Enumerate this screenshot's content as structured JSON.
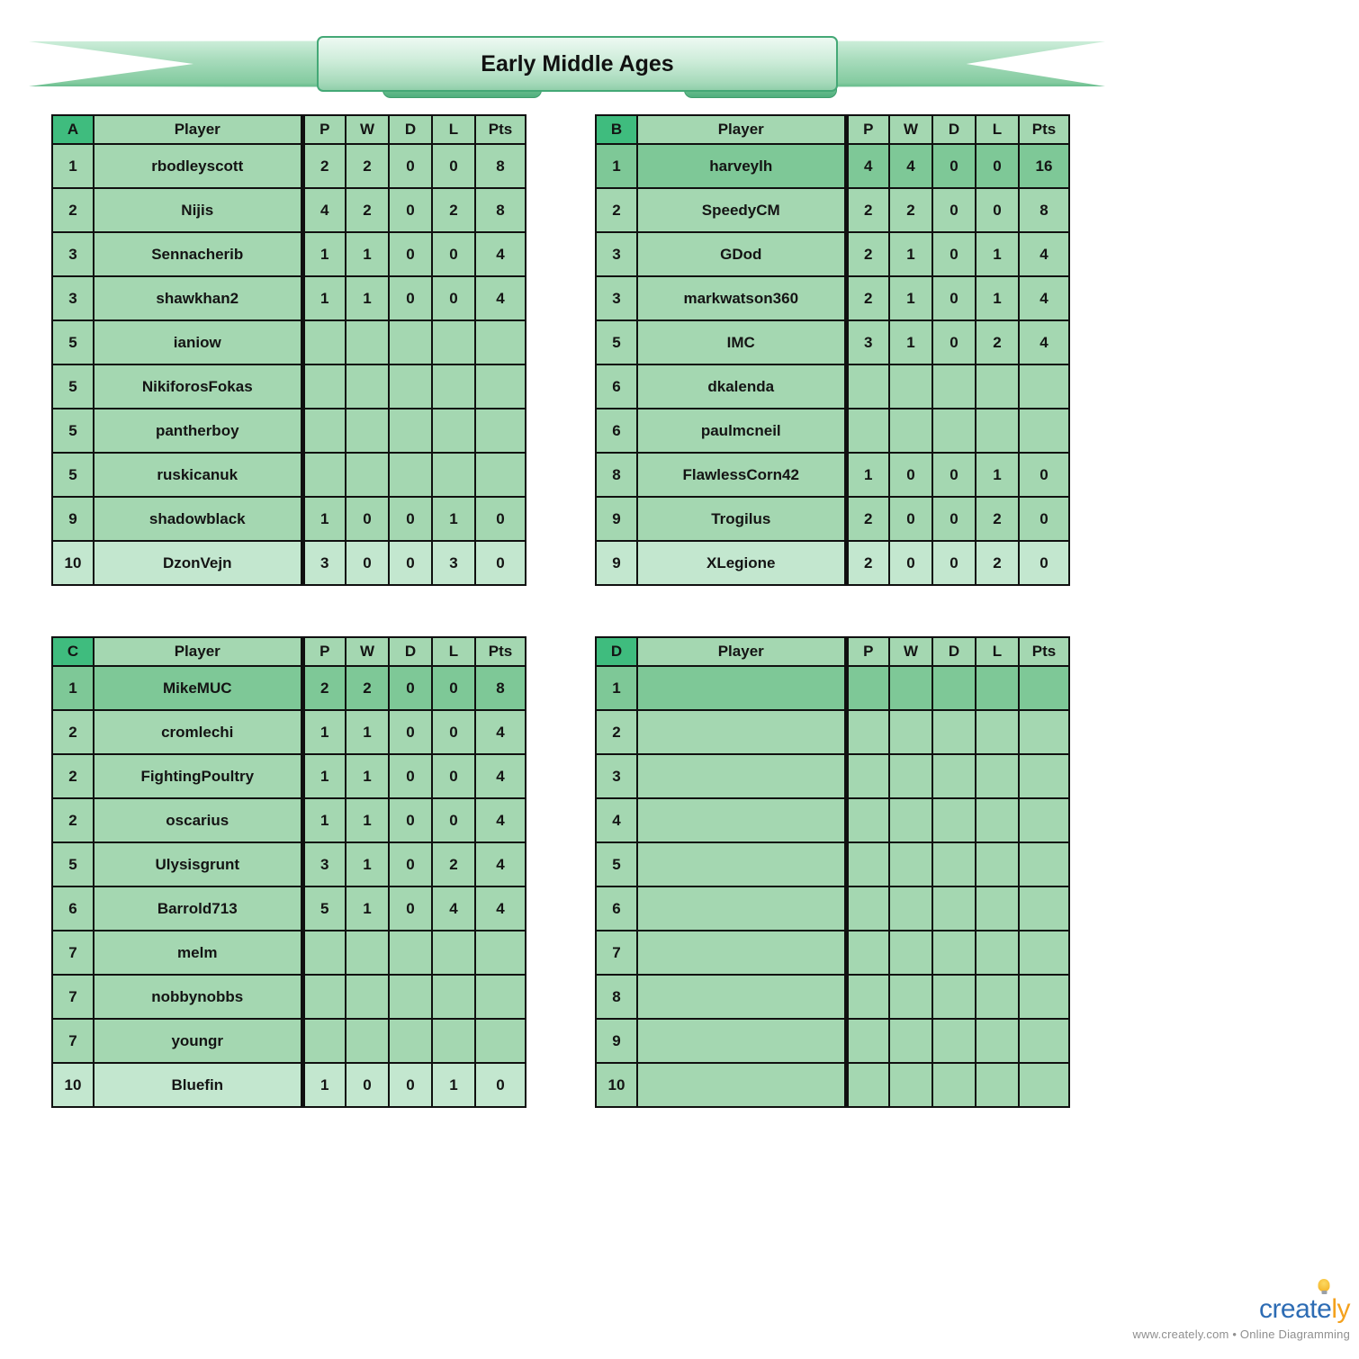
{
  "banner": {
    "title": "Early Middle Ages"
  },
  "columns": {
    "player": "Player",
    "p": "P",
    "w": "W",
    "d": "D",
    "l": "L",
    "pts": "Pts"
  },
  "groups": [
    {
      "letter": "A",
      "rows": [
        {
          "rank": "1",
          "player": "rbodleyscott",
          "p": "2",
          "w": "2",
          "d": "0",
          "l": "0",
          "pts": "8",
          "highlight": "normal"
        },
        {
          "rank": "2",
          "player": "Nijis",
          "p": "4",
          "w": "2",
          "d": "0",
          "l": "2",
          "pts": "8",
          "highlight": "normal"
        },
        {
          "rank": "3",
          "player": "Sennacherib",
          "p": "1",
          "w": "1",
          "d": "0",
          "l": "0",
          "pts": "4",
          "highlight": "normal"
        },
        {
          "rank": "3",
          "player": "shawkhan2",
          "p": "1",
          "w": "1",
          "d": "0",
          "l": "0",
          "pts": "4",
          "highlight": "normal"
        },
        {
          "rank": "5",
          "player": "ianiow",
          "p": "",
          "w": "",
          "d": "",
          "l": "",
          "pts": "",
          "highlight": "normal"
        },
        {
          "rank": "5",
          "player": "NikiforosFokas",
          "p": "",
          "w": "",
          "d": "",
          "l": "",
          "pts": "",
          "highlight": "normal"
        },
        {
          "rank": "5",
          "player": "pantherboy",
          "p": "",
          "w": "",
          "d": "",
          "l": "",
          "pts": "",
          "highlight": "normal"
        },
        {
          "rank": "5",
          "player": "ruskicanuk",
          "p": "",
          "w": "",
          "d": "",
          "l": "",
          "pts": "",
          "highlight": "normal"
        },
        {
          "rank": "9",
          "player": "shadowblack",
          "p": "1",
          "w": "0",
          "d": "0",
          "l": "1",
          "pts": "0",
          "highlight": "normal"
        },
        {
          "rank": "10",
          "player": "DzonVejn",
          "p": "3",
          "w": "0",
          "d": "0",
          "l": "3",
          "pts": "0",
          "highlight": "bottom"
        }
      ]
    },
    {
      "letter": "B",
      "rows": [
        {
          "rank": "1",
          "player": "harveylh",
          "p": "4",
          "w": "4",
          "d": "0",
          "l": "0",
          "pts": "16",
          "highlight": "top"
        },
        {
          "rank": "2",
          "player": "SpeedyCM",
          "p": "2",
          "w": "2",
          "d": "0",
          "l": "0",
          "pts": "8",
          "highlight": "normal"
        },
        {
          "rank": "3",
          "player": "GDod",
          "p": "2",
          "w": "1",
          "d": "0",
          "l": "1",
          "pts": "4",
          "highlight": "normal"
        },
        {
          "rank": "3",
          "player": "markwatson360",
          "p": "2",
          "w": "1",
          "d": "0",
          "l": "1",
          "pts": "4",
          "highlight": "normal"
        },
        {
          "rank": "5",
          "player": "IMC",
          "p": "3",
          "w": "1",
          "d": "0",
          "l": "2",
          "pts": "4",
          "highlight": "normal"
        },
        {
          "rank": "6",
          "player": "dkalenda",
          "p": "",
          "w": "",
          "d": "",
          "l": "",
          "pts": "",
          "highlight": "normal"
        },
        {
          "rank": "6",
          "player": "paulmcneil",
          "p": "",
          "w": "",
          "d": "",
          "l": "",
          "pts": "",
          "highlight": "normal"
        },
        {
          "rank": "8",
          "player": "FlawlessCorn42",
          "p": "1",
          "w": "0",
          "d": "0",
          "l": "1",
          "pts": "0",
          "highlight": "normal"
        },
        {
          "rank": "9",
          "player": "Trogilus",
          "p": "2",
          "w": "0",
          "d": "0",
          "l": "2",
          "pts": "0",
          "highlight": "normal"
        },
        {
          "rank": "9",
          "player": "XLegione",
          "p": "2",
          "w": "0",
          "d": "0",
          "l": "2",
          "pts": "0",
          "highlight": "bottom"
        }
      ]
    },
    {
      "letter": "C",
      "rows": [
        {
          "rank": "1",
          "player": "MikeMUC",
          "p": "2",
          "w": "2",
          "d": "0",
          "l": "0",
          "pts": "8",
          "highlight": "top"
        },
        {
          "rank": "2",
          "player": "cromlechi",
          "p": "1",
          "w": "1",
          "d": "0",
          "l": "0",
          "pts": "4",
          "highlight": "normal"
        },
        {
          "rank": "2",
          "player": "FightingPoultry",
          "p": "1",
          "w": "1",
          "d": "0",
          "l": "0",
          "pts": "4",
          "highlight": "normal"
        },
        {
          "rank": "2",
          "player": "oscarius",
          "p": "1",
          "w": "1",
          "d": "0",
          "l": "0",
          "pts": "4",
          "highlight": "normal"
        },
        {
          "rank": "5",
          "player": "Ulysisgrunt",
          "p": "3",
          "w": "1",
          "d": "0",
          "l": "2",
          "pts": "4",
          "highlight": "normal"
        },
        {
          "rank": "6",
          "player": "Barrold713",
          "p": "5",
          "w": "1",
          "d": "0",
          "l": "4",
          "pts": "4",
          "highlight": "normal"
        },
        {
          "rank": "7",
          "player": "melm",
          "p": "",
          "w": "",
          "d": "",
          "l": "",
          "pts": "",
          "highlight": "normal"
        },
        {
          "rank": "7",
          "player": "nobbynobbs",
          "p": "",
          "w": "",
          "d": "",
          "l": "",
          "pts": "",
          "highlight": "normal"
        },
        {
          "rank": "7",
          "player": "youngr",
          "p": "",
          "w": "",
          "d": "",
          "l": "",
          "pts": "",
          "highlight": "normal"
        },
        {
          "rank": "10",
          "player": "Bluefin",
          "p": "1",
          "w": "0",
          "d": "0",
          "l": "1",
          "pts": "0",
          "highlight": "bottom"
        }
      ]
    },
    {
      "letter": "D",
      "rows": [
        {
          "rank": "1",
          "player": "",
          "p": "",
          "w": "",
          "d": "",
          "l": "",
          "pts": "",
          "highlight": "top"
        },
        {
          "rank": "2",
          "player": "",
          "p": "",
          "w": "",
          "d": "",
          "l": "",
          "pts": "",
          "highlight": "normal"
        },
        {
          "rank": "3",
          "player": "",
          "p": "",
          "w": "",
          "d": "",
          "l": "",
          "pts": "",
          "highlight": "normal"
        },
        {
          "rank": "4",
          "player": "",
          "p": "",
          "w": "",
          "d": "",
          "l": "",
          "pts": "",
          "highlight": "normal"
        },
        {
          "rank": "5",
          "player": "",
          "p": "",
          "w": "",
          "d": "",
          "l": "",
          "pts": "",
          "highlight": "normal"
        },
        {
          "rank": "6",
          "player": "",
          "p": "",
          "w": "",
          "d": "",
          "l": "",
          "pts": "",
          "highlight": "normal"
        },
        {
          "rank": "7",
          "player": "",
          "p": "",
          "w": "",
          "d": "",
          "l": "",
          "pts": "",
          "highlight": "normal"
        },
        {
          "rank": "8",
          "player": "",
          "p": "",
          "w": "",
          "d": "",
          "l": "",
          "pts": "",
          "highlight": "normal"
        },
        {
          "rank": "9",
          "player": "",
          "p": "",
          "w": "",
          "d": "",
          "l": "",
          "pts": "",
          "highlight": "normal"
        },
        {
          "rank": "10",
          "player": "",
          "p": "",
          "w": "",
          "d": "",
          "l": "",
          "pts": "",
          "highlight": "normal"
        }
      ]
    }
  ],
  "watermark": {
    "brand_prefix": "creat",
    "brand_mid": "e",
    "brand_suffix": "ly",
    "tagline": "www.creately.com • Online Diagramming"
  },
  "colors": {
    "group_letter_bg": "#3fbc7e",
    "row_bg": "#a4d7b1",
    "row_top_bg": "#7ec897",
    "row_bottom_bg": "#c3e7cf",
    "table_border": "#101010",
    "ribbon_green": "#84cba0",
    "brand_blue": "#2d6cb4",
    "brand_orange": "#f4a11d"
  }
}
